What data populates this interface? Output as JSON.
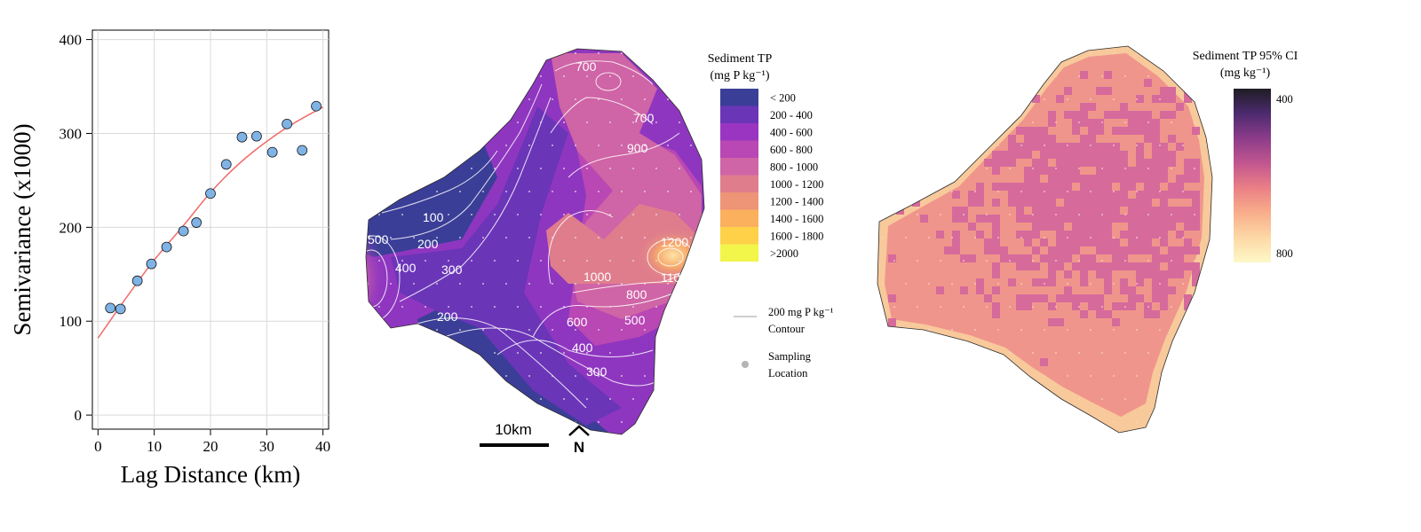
{
  "chart_data": [
    {
      "type": "scatter",
      "xlabel": "Lag Distance (km)",
      "ylabel": "Semivariance (x1000)",
      "xlim": [
        -1,
        41
      ],
      "ylim": [
        -15,
        410
      ],
      "xticks": [
        "0",
        "10",
        "20",
        "30",
        "40"
      ],
      "yticks": [
        "0",
        "100",
        "200",
        "300",
        "400"
      ],
      "grid": true,
      "point_color": "#7fb3e6",
      "fit_color": "#f06a6a",
      "points": {
        "x": [
          2.2,
          4.0,
          7.0,
          9.5,
          12.2,
          15.2,
          17.5,
          20.0,
          22.8,
          25.6,
          28.2,
          31.0,
          33.6,
          36.3,
          38.8
        ],
        "y": [
          114,
          113,
          143,
          161,
          179,
          196,
          205,
          236,
          267,
          296,
          297,
          280,
          310,
          282,
          329
        ]
      },
      "fit_curve": {
        "x": [
          0,
          5,
          10,
          15,
          20,
          25,
          30,
          35,
          40
        ],
        "y": [
          82,
          125,
          166,
          200,
          238,
          268,
          292,
          312,
          328
        ]
      }
    },
    {
      "type": "heatmap",
      "legend_title_1": "Sediment TP",
      "legend_title_2": "(mg P kg⁻¹)",
      "classes": [
        "< 200",
        "200 - 400",
        "400 - 600",
        "600 - 800",
        "800 - 1000",
        "1000 - 1200",
        "1200 - 1400",
        "1400 - 1600",
        "1600 - 1800",
        ">2000"
      ],
      "class_colors": [
        "#3b3e97",
        "#6b35b8",
        "#9a35c2",
        "#b947b4",
        "#cf64a6",
        "#df7d8d",
        "#ee9477",
        "#fbb05e",
        "#fed149",
        "#f2f54a"
      ],
      "contour_labels": [
        "700",
        "700",
        "900",
        "100",
        "200",
        "300",
        "500",
        "400",
        "1200",
        "1100",
        "1000",
        "800",
        "600",
        "500",
        "400",
        "200",
        "300"
      ],
      "contour_legend_1": "200 mg P kg⁻¹",
      "contour_legend_2": "Contour",
      "sampling_legend_1": "Sampling",
      "sampling_legend_2": "Location",
      "scale_label": "10km",
      "north_label": "N"
    },
    {
      "type": "heatmap",
      "legend_title_1": "Sediment TP 95% CI",
      "legend_title_2": "(mg kg⁻¹)",
      "colorbar_max_label": "400",
      "colorbar_min_label": "800",
      "colorbar_colors": [
        "#1f1d24",
        "#4b2a6e",
        "#8a3b89",
        "#c2568f",
        "#ea7f86",
        "#f8ac8a",
        "#fdd9a6",
        "#fdf8c8"
      ]
    }
  ]
}
